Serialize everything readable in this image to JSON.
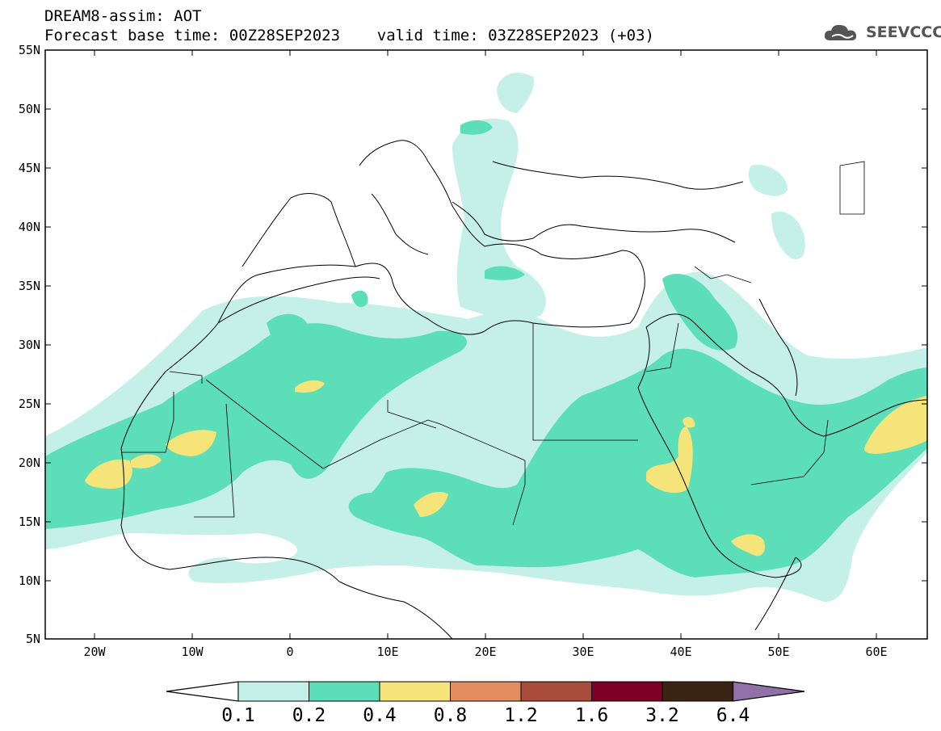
{
  "header": {
    "line1": "DREAM8-assim: AOT",
    "line2": "Forecast base time: 00Z28SEP2023    valid time: 03Z28SEP2023 (+03)",
    "brand": "SEEVCCC"
  },
  "map": {
    "lat_labels": [
      "55N",
      "50N",
      "45N",
      "40N",
      "35N",
      "30N",
      "25N",
      "20N",
      "15N",
      "10N",
      "5N"
    ],
    "lon_labels": [
      "20W",
      "10W",
      "0",
      "10E",
      "20E",
      "30E",
      "40E",
      "50E",
      "60E"
    ]
  },
  "colorbar": {
    "levels": [
      "0.1",
      "0.2",
      "0.4",
      "0.8",
      "1.2",
      "1.6",
      "3.2",
      "6.4"
    ],
    "colors": [
      "#ffffff",
      "#c5f0e8",
      "#5cdfb8",
      "#f5e47a",
      "#e58d62",
      "#a94c3c",
      "#7d0026",
      "#3b2414",
      "#9271a8"
    ]
  },
  "colors": {
    "lightest": "#c5f0e8",
    "light": "#5cdfb8",
    "medium": "#f5e47a"
  }
}
